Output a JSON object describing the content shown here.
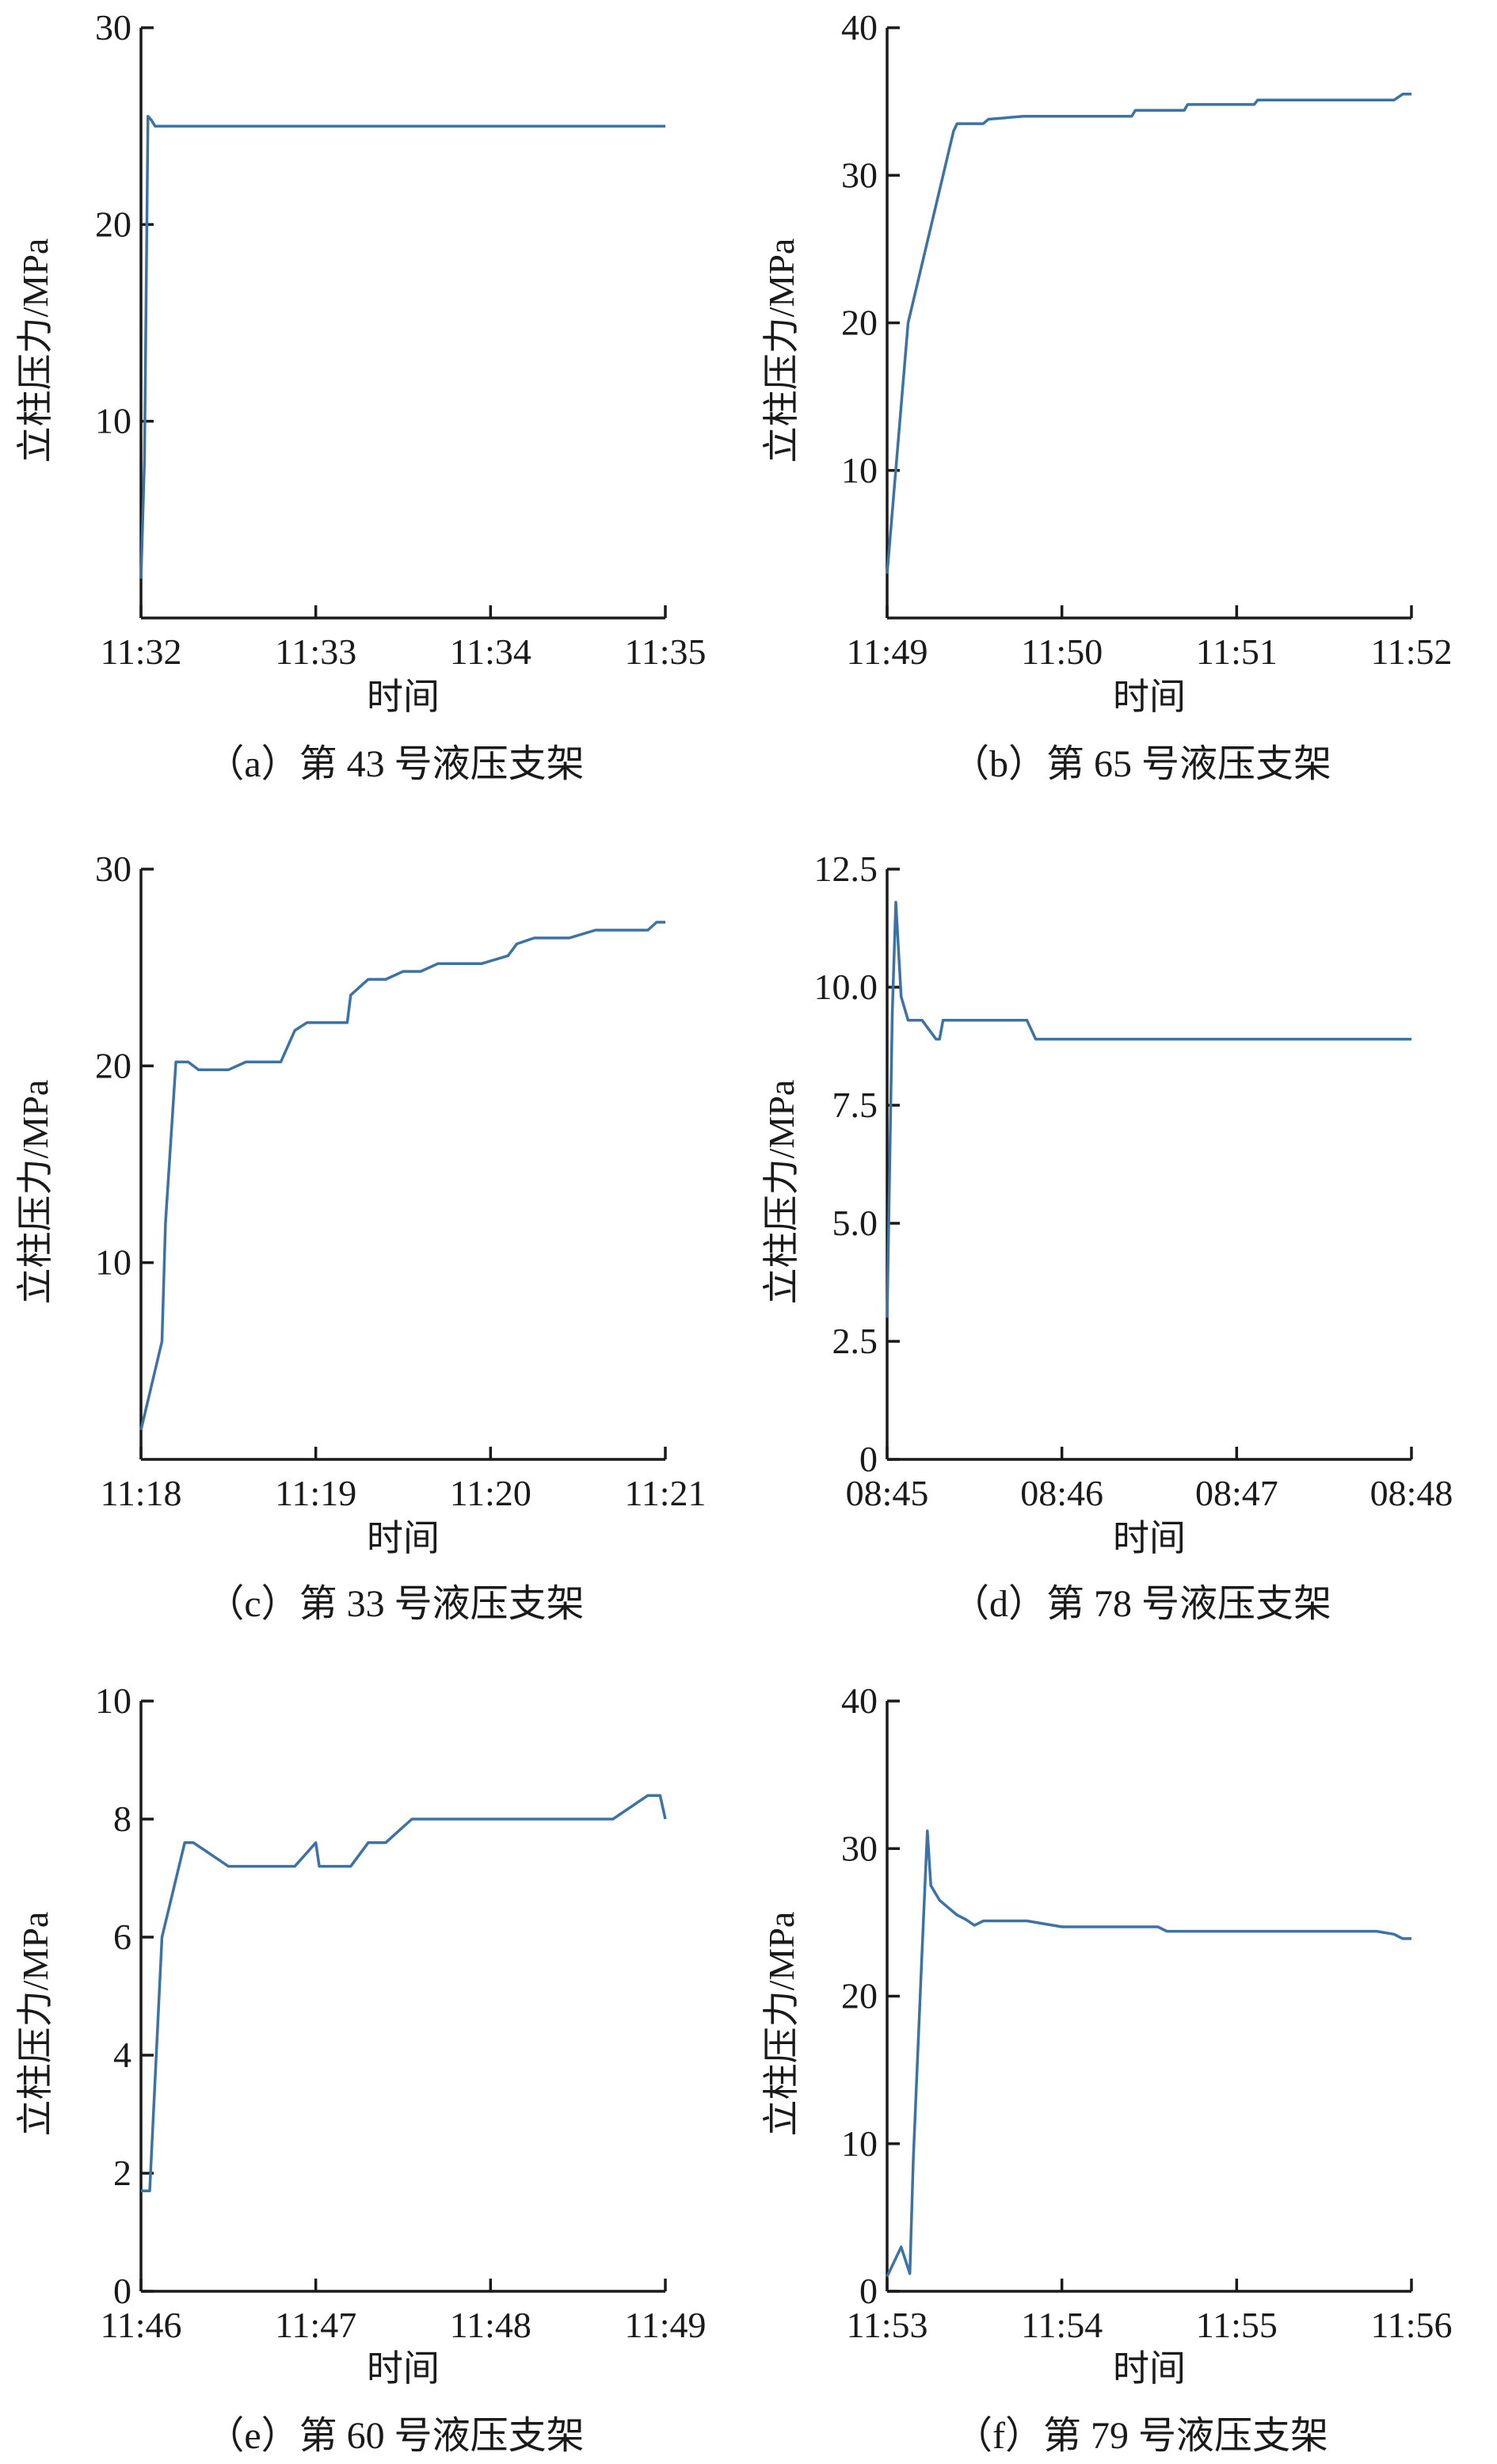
{
  "chart_data": [
    {
      "type": "line",
      "caption": "（a）第 43 号液压支架",
      "xlabel": "时间",
      "ylabel": "立柱压力/MPa",
      "x_ticks": [
        "11:32",
        "11:33",
        "11:34",
        "11:35"
      ],
      "xlim": [
        0,
        3
      ],
      "y_ticks": [
        "10",
        "20",
        "30"
      ],
      "y_tick_values": [
        10,
        20,
        30
      ],
      "ylim": [
        0,
        30
      ],
      "series": [
        {
          "color": "#3d72a4",
          "x": [
            0,
            0.02,
            0.04,
            0.06,
            0.08,
            3.0
          ],
          "y": [
            2,
            8,
            25.5,
            25.3,
            25,
            25
          ]
        }
      ]
    },
    {
      "type": "line",
      "caption": "（b）第 65 号液压支架",
      "xlabel": "时间",
      "ylabel": "立柱压力/MPa",
      "x_ticks": [
        "11:49",
        "11:50",
        "11:51",
        "11:52"
      ],
      "xlim": [
        0,
        3
      ],
      "y_ticks": [
        "10",
        "20",
        "30",
        "40"
      ],
      "y_tick_values": [
        10,
        20,
        30,
        40
      ],
      "ylim": [
        0,
        40
      ],
      "series": [
        {
          "color": "#3d72a4",
          "x": [
            0,
            0.12,
            0.38,
            0.4,
            0.55,
            0.58,
            0.78,
            1.4,
            1.42,
            1.7,
            1.72,
            2.1,
            2.12,
            2.9,
            2.95,
            3.0
          ],
          "y": [
            3,
            20,
            33,
            33.5,
            33.5,
            33.8,
            34,
            34,
            34.4,
            34.4,
            34.8,
            34.8,
            35.1,
            35.1,
            35.5,
            35.5
          ]
        }
      ]
    },
    {
      "type": "line",
      "caption": "（c）第 33 号液压支架",
      "xlabel": "时间",
      "ylabel": "立柱压力/MPa",
      "x_ticks": [
        "11:18",
        "11:19",
        "11:20",
        "11:21"
      ],
      "xlim": [
        0,
        3
      ],
      "y_ticks": [
        "10",
        "20",
        "30"
      ],
      "y_tick_values": [
        10,
        20,
        30
      ],
      "ylim": [
        0,
        30
      ],
      "series": [
        {
          "color": "#3d72a4",
          "x": [
            0,
            0.12,
            0.14,
            0.2,
            0.27,
            0.33,
            0.5,
            0.6,
            0.8,
            0.88,
            0.95,
            1.18,
            1.2,
            1.3,
            1.4,
            1.5,
            1.6,
            1.7,
            1.95,
            2.1,
            2.15,
            2.25,
            2.45,
            2.6,
            2.9,
            2.95,
            3.0
          ],
          "y": [
            1.5,
            6,
            12,
            20.2,
            20.2,
            19.8,
            19.8,
            20.2,
            20.2,
            21.8,
            22.2,
            22.2,
            23.6,
            24.4,
            24.4,
            24.8,
            24.8,
            25.2,
            25.2,
            25.6,
            26.2,
            26.5,
            26.5,
            26.9,
            26.9,
            27.3,
            27.3
          ]
        }
      ]
    },
    {
      "type": "line",
      "caption": "（d）第 78 号液压支架",
      "xlabel": "时间",
      "ylabel": "立柱压力/MPa",
      "x_ticks": [
        "08:45",
        "08:46",
        "08:47",
        "08:48"
      ],
      "xlim": [
        0,
        3
      ],
      "y_ticks": [
        "0",
        "2.5",
        "5.0",
        "7.5",
        "10.0",
        "12.5"
      ],
      "y_tick_values": [
        0,
        2.5,
        5,
        7.5,
        10,
        12.5
      ],
      "ylim": [
        0,
        12.5
      ],
      "series": [
        {
          "color": "#3d72a4",
          "x": [
            0,
            0.03,
            0.05,
            0.08,
            0.12,
            0.18,
            0.2,
            0.28,
            0.3,
            0.32,
            0.42,
            0.6,
            0.8,
            0.85,
            0.9,
            1.5,
            2.0,
            2.5,
            3.0
          ],
          "y": [
            3,
            9.5,
            11.8,
            9.8,
            9.3,
            9.3,
            9.3,
            8.9,
            8.9,
            9.3,
            9.3,
            9.3,
            9.3,
            8.9,
            8.9,
            8.9,
            8.9,
            8.9,
            8.9
          ]
        }
      ]
    },
    {
      "type": "line",
      "caption": "（e）第 60 号液压支架",
      "xlabel": "时间",
      "ylabel": "立柱压力/MPa",
      "x_ticks": [
        "11:46",
        "11:47",
        "11:48",
        "11:49"
      ],
      "xlim": [
        0,
        3
      ],
      "y_ticks": [
        "0",
        "2",
        "4",
        "6",
        "8",
        "10"
      ],
      "y_tick_values": [
        0,
        2,
        4,
        6,
        8,
        10
      ],
      "ylim": [
        0,
        10
      ],
      "series": [
        {
          "color": "#3d72a4",
          "x": [
            0,
            0.05,
            0.12,
            0.25,
            0.3,
            0.5,
            0.88,
            1.0,
            1.02,
            1.2,
            1.3,
            1.4,
            1.55,
            1.7,
            2.5,
            2.7,
            2.9,
            2.97,
            3.0
          ],
          "y": [
            1.7,
            1.7,
            6,
            7.6,
            7.6,
            7.2,
            7.2,
            7.6,
            7.2,
            7.2,
            7.6,
            7.6,
            8,
            8,
            8,
            8,
            8.4,
            8.4,
            8
          ]
        }
      ]
    },
    {
      "type": "line",
      "caption": "（f）第 79 号液压支架",
      "xlabel": "时间",
      "ylabel": "立柱压力/MPa",
      "x_ticks": [
        "11:53",
        "11:54",
        "11:55",
        "11:56"
      ],
      "xlim": [
        0,
        3
      ],
      "y_ticks": [
        "0",
        "10",
        "20",
        "30",
        "40"
      ],
      "y_tick_values": [
        0,
        10,
        20,
        30,
        40
      ],
      "ylim": [
        0,
        40
      ],
      "series": [
        {
          "color": "#3d72a4",
          "x": [
            0,
            0.08,
            0.13,
            0.15,
            0.2,
            0.23,
            0.25,
            0.3,
            0.35,
            0.4,
            0.45,
            0.5,
            0.55,
            0.6,
            0.8,
            1.0,
            1.55,
            1.6,
            2.5,
            2.8,
            2.9,
            2.95,
            3.0
          ],
          "y": [
            1,
            3,
            1.2,
            9,
            23,
            31.2,
            27.5,
            26.5,
            26,
            25.5,
            25.2,
            24.8,
            25.1,
            25.1,
            25.1,
            24.7,
            24.7,
            24.4,
            24.4,
            24.4,
            24.2,
            23.9,
            23.9
          ]
        }
      ]
    }
  ]
}
